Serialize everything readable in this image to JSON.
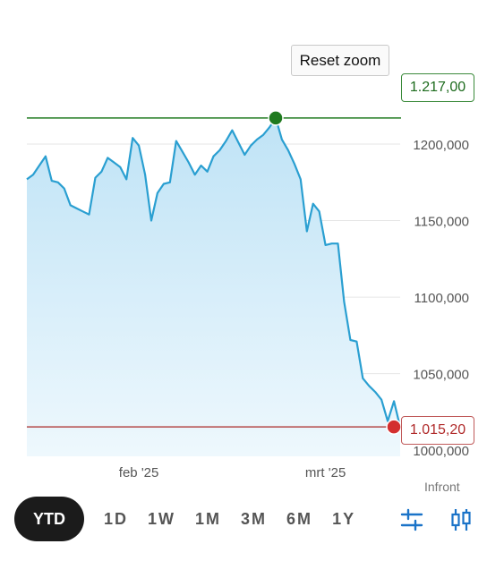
{
  "chart_data": {
    "type": "area",
    "x_tick_labels": [
      "feb '25",
      "mrt '25"
    ],
    "y_tick_labels": [
      "1200,000",
      "1150,000",
      "1100,000",
      "1050,000",
      "1000,000"
    ],
    "y_ticks": [
      1200,
      1150,
      1100,
      1050,
      1000
    ],
    "ylim": [
      996,
      1238
    ],
    "grid": "horizontal",
    "series": [
      {
        "values": [
          1177,
          1180,
          1186,
          1192,
          1176,
          1175,
          1171,
          1160,
          1158,
          1156,
          1154,
          1178,
          1182,
          1191,
          1188,
          1185,
          1177,
          1204,
          1199,
          1180,
          1150,
          1168,
          1174,
          1175,
          1202,
          1195,
          1188,
          1180,
          1186,
          1182,
          1192,
          1196,
          1202,
          1209,
          1201,
          1193,
          1199,
          1203,
          1206,
          1211,
          1217,
          1203,
          1196,
          1187,
          1177,
          1143,
          1161,
          1156,
          1134,
          1135,
          1135,
          1097,
          1072,
          1071,
          1047,
          1042,
          1038,
          1033,
          1019,
          1032,
          1015.2
        ]
      }
    ],
    "x_tick_positions": [
      18,
      48
    ],
    "annotations": {
      "high": {
        "value": 1217,
        "label": "1.217,00",
        "index": 40
      },
      "low": {
        "value": 1015.2,
        "label": "1.015,20",
        "index": 60
      }
    }
  },
  "toolbar": {
    "reset_zoom_label": "Reset zoom"
  },
  "credit": "Infront",
  "ranges": [
    "YTD",
    "1D",
    "1W",
    "1M",
    "3M",
    "6M",
    "1Y"
  ],
  "active_range": "YTD",
  "colors": {
    "line": "#2a9fd1",
    "fill_top": "#bfe3f6",
    "fill_bottom": "#eef8fd",
    "high": "#1f7a1f",
    "low": "#d32f2f",
    "grid": "#e6e6e6",
    "icon": "#1a73c8"
  },
  "icons": [
    "filter-sliders-icon",
    "candlestick-icon"
  ]
}
